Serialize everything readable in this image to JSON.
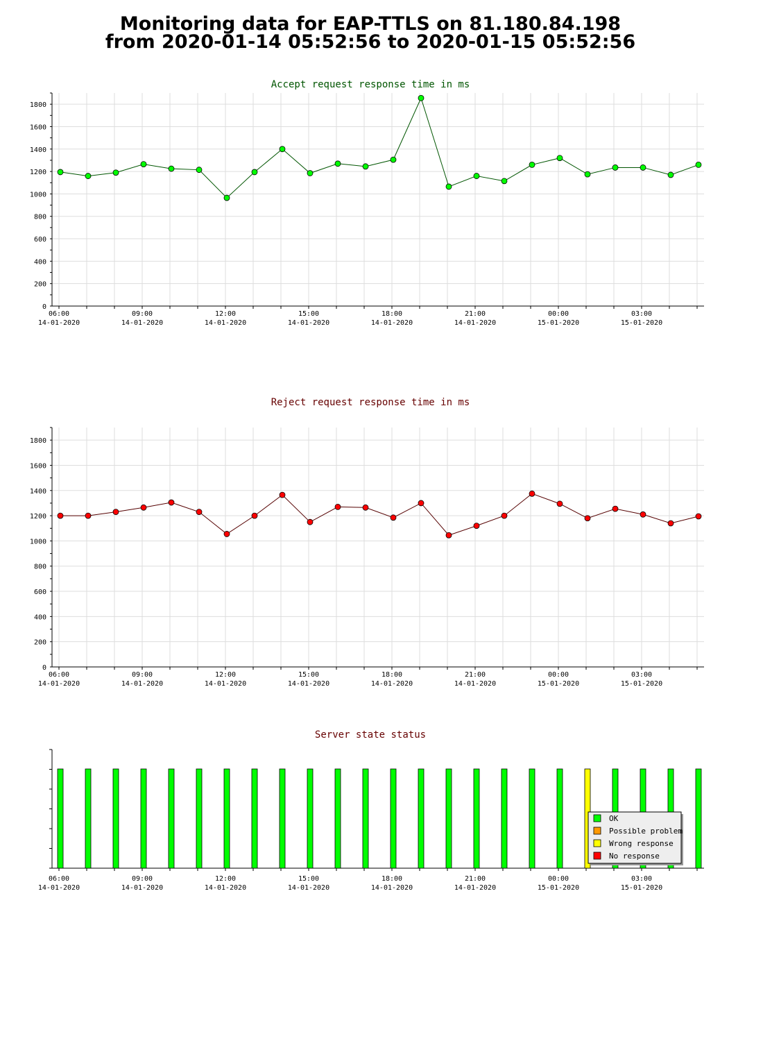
{
  "page": {
    "title_line1": "Monitoring data for EAP-TTLS on 81.180.84.198",
    "title_line2": "from 2020-01-14 05:52:56 to 2020-01-15 05:52:56"
  },
  "colors": {
    "accept_title": "#005500",
    "reject_title": "#660000",
    "status_title": "#660000",
    "accept_line": "#005500",
    "accept_marker": "#00ff00",
    "reject_line": "#550000",
    "reject_marker": "#ff0000",
    "grid": "#dddddd",
    "ok": "#00ff00",
    "possible_problem": "#ff9900",
    "wrong_response": "#ffff00",
    "no_response": "#ff0000"
  },
  "x_axis": {
    "domain_hours": [
      5.75,
      29.25
    ],
    "labeled_ticks": [
      {
        "hour": 6,
        "time": "06:00",
        "date": "14-01-2020"
      },
      {
        "hour": 9,
        "time": "09:00",
        "date": "14-01-2020"
      },
      {
        "hour": 12,
        "time": "12:00",
        "date": "14-01-2020"
      },
      {
        "hour": 15,
        "time": "15:00",
        "date": "14-01-2020"
      },
      {
        "hour": 18,
        "time": "18:00",
        "date": "14-01-2020"
      },
      {
        "hour": 21,
        "time": "21:00",
        "date": "14-01-2020"
      },
      {
        "hour": 24,
        "time": "00:00",
        "date": "15-01-2020"
      },
      {
        "hour": 27,
        "time": "03:00",
        "date": "15-01-2020"
      }
    ]
  },
  "chart_data": [
    {
      "type": "line",
      "title": "Accept request response time in ms",
      "ylim": [
        0,
        1900
      ],
      "yticks": [
        0,
        200,
        400,
        600,
        800,
        1000,
        1200,
        1400,
        1600,
        1800
      ],
      "grid": true,
      "x_hours": [
        6.05,
        7.05,
        8.05,
        9.05,
        10.05,
        11.05,
        12.05,
        13.05,
        14.05,
        15.05,
        16.05,
        17.05,
        18.05,
        19.05,
        20.05,
        21.05,
        22.05,
        23.05,
        24.05,
        25.05,
        26.05,
        27.05,
        28.05,
        29.05
      ],
      "series": [
        {
          "values": [
            1195,
            1160,
            1190,
            1265,
            1225,
            1215,
            965,
            1195,
            1400,
            1185,
            1270,
            1245,
            1305,
            1855,
            1065,
            1160,
            1115,
            1260,
            1320,
            1175,
            1235,
            1235,
            1170,
            1260
          ]
        }
      ]
    },
    {
      "type": "line",
      "title": "Reject request response time in ms",
      "ylim": [
        0,
        1900
      ],
      "yticks": [
        0,
        200,
        400,
        600,
        800,
        1000,
        1200,
        1400,
        1600,
        1800
      ],
      "grid": true,
      "x_hours": [
        6.05,
        7.05,
        8.05,
        9.05,
        10.05,
        11.05,
        12.05,
        13.05,
        14.05,
        15.05,
        16.05,
        17.05,
        18.05,
        19.05,
        20.05,
        21.05,
        22.05,
        23.05,
        24.05,
        25.05,
        26.05,
        27.05,
        28.05,
        29.05
      ],
      "series": [
        {
          "values": [
            1200,
            1200,
            1230,
            1265,
            1305,
            1230,
            1055,
            1200,
            1365,
            1150,
            1270,
            1265,
            1185,
            1300,
            1045,
            1120,
            1200,
            1375,
            1295,
            1180,
            1255,
            1210,
            1140,
            1195
          ]
        }
      ]
    },
    {
      "type": "bar",
      "title": "Server state status",
      "x_hours": [
        6.05,
        7.05,
        8.05,
        9.05,
        10.05,
        11.05,
        12.05,
        13.05,
        14.05,
        15.05,
        16.05,
        17.05,
        18.05,
        19.05,
        20.05,
        21.05,
        22.05,
        23.05,
        24.05,
        25.05,
        26.05,
        27.05,
        28.05,
        29.05
      ],
      "status": [
        "OK",
        "OK",
        "OK",
        "OK",
        "OK",
        "OK",
        "OK",
        "OK",
        "OK",
        "OK",
        "OK",
        "OK",
        "OK",
        "OK",
        "OK",
        "OK",
        "OK",
        "OK",
        "OK",
        "Wrong response",
        "OK",
        "OK",
        "OK",
        "OK"
      ],
      "legend_placement": "bottom-right",
      "legend": [
        {
          "label": "OK",
          "color": "#00ff00"
        },
        {
          "label": "Possible problem",
          "color": "#ff9900"
        },
        {
          "label": "Wrong response",
          "color": "#ffff00"
        },
        {
          "label": "No response",
          "color": "#ff0000"
        }
      ]
    }
  ]
}
